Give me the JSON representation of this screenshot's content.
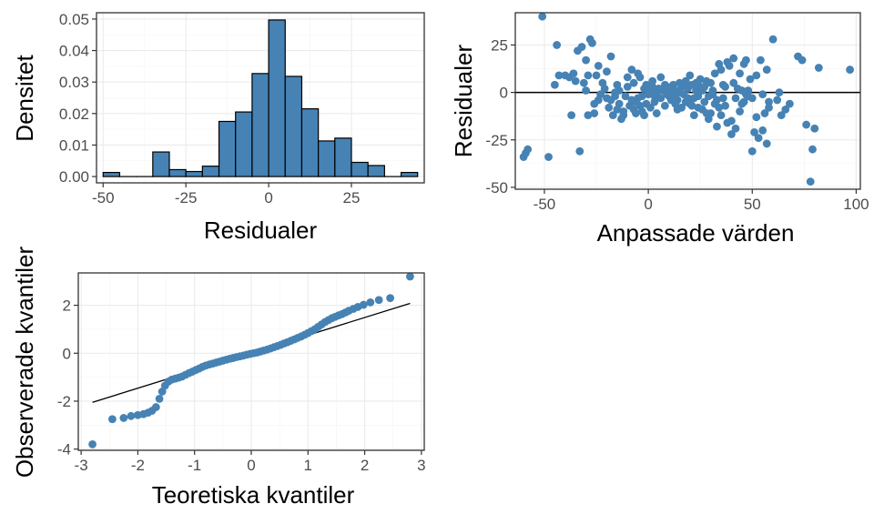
{
  "chart_data": [
    {
      "type": "bar",
      "chart": "histogram",
      "xlabel": "Residualer",
      "ylabel": "Densitet",
      "xlim": [
        -52,
        47
      ],
      "ylim": [
        -0.002,
        0.052
      ],
      "xticks": [
        -50,
        -25,
        0,
        25
      ],
      "xtick_labels": [
        "-50",
        "-25",
        "0",
        "25"
      ],
      "yticks": [
        0,
        0.01,
        0.02,
        0.03,
        0.04,
        0.05
      ],
      "ytick_labels": [
        "0.00",
        "0.01",
        "0.02",
        "0.03",
        "0.04",
        "0.05"
      ],
      "bin_width": 5,
      "bin_centers": [
        -47.5,
        -42.5,
        -37.5,
        -32.5,
        -27.5,
        -22.5,
        -17.5,
        -12.5,
        -7.5,
        -2.5,
        2.5,
        7.5,
        12.5,
        17.5,
        22.5,
        27.5,
        32.5,
        37.5,
        42.5
      ],
      "values": [
        0.0013,
        0,
        0,
        0.0078,
        0.0022,
        0.0016,
        0.0033,
        0.0175,
        0.0205,
        0.0327,
        0.0497,
        0.0318,
        0.0215,
        0.0113,
        0.0122,
        0.0045,
        0.0035,
        0,
        0.0013
      ],
      "color": "#4682b4",
      "grid": true
    },
    {
      "type": "scatter",
      "xlabel": "Anpassade värden",
      "ylabel": "Residualer",
      "xlim": [
        -64,
        102
      ],
      "ylim": [
        -51,
        42
      ],
      "xticks": [
        -50,
        0,
        50,
        100
      ],
      "xtick_labels": [
        "-50",
        "0",
        "50",
        "100"
      ],
      "yticks": [
        -50,
        -25,
        0,
        25
      ],
      "ytick_labels": [
        "-50",
        "-25",
        "0",
        "25"
      ],
      "hline": 0,
      "color": "#4682b4",
      "grid": true,
      "points": [
        [
          -51,
          40
        ],
        [
          -60,
          -34
        ],
        [
          -59,
          -32
        ],
        [
          -58,
          -30
        ],
        [
          -48,
          -34
        ],
        [
          -44,
          25
        ],
        [
          -45,
          4
        ],
        [
          -43,
          9
        ],
        [
          -40,
          9
        ],
        [
          -38,
          8
        ],
        [
          -36,
          10
        ],
        [
          -34,
          22
        ],
        [
          -32,
          24
        ],
        [
          -30,
          17
        ],
        [
          -29,
          -12
        ],
        [
          -28,
          28
        ],
        [
          -27,
          26
        ],
        [
          -26,
          -11
        ],
        [
          -25,
          9
        ],
        [
          -24,
          14
        ],
        [
          -33,
          -31
        ],
        [
          -35,
          6
        ],
        [
          -31,
          5
        ],
        [
          -22,
          5
        ],
        [
          -21,
          2
        ],
        [
          -20,
          -3
        ],
        [
          -19,
          -8
        ],
        [
          -18,
          19
        ],
        [
          -17,
          -12
        ],
        [
          -16,
          0
        ],
        [
          -15,
          4
        ],
        [
          -14,
          -6
        ],
        [
          -13,
          -14
        ],
        [
          -12,
          -10
        ],
        [
          -11,
          -2
        ],
        [
          -10,
          3
        ],
        [
          -9,
          -7
        ],
        [
          -8,
          -4
        ],
        [
          -7,
          5
        ],
        [
          -6,
          -5
        ],
        [
          -5,
          -3
        ],
        [
          -4,
          8
        ],
        [
          -3,
          -2
        ],
        [
          -2,
          2
        ],
        [
          -1,
          -6
        ],
        [
          0,
          -1
        ],
        [
          1,
          1
        ],
        [
          2,
          3
        ],
        [
          3,
          -2
        ],
        [
          4,
          0
        ],
        [
          5,
          2
        ],
        [
          6,
          -3
        ],
        [
          7,
          1
        ],
        [
          8,
          4
        ],
        [
          9,
          -1
        ],
        [
          10,
          0
        ],
        [
          11,
          2
        ],
        [
          12,
          -2
        ],
        [
          13,
          1
        ],
        [
          14,
          -4
        ],
        [
          15,
          0
        ],
        [
          16,
          3
        ],
        [
          17,
          -1
        ],
        [
          18,
          -5
        ],
        [
          19,
          2
        ],
        [
          20,
          -6
        ],
        [
          21,
          4
        ],
        [
          22,
          -3
        ],
        [
          23,
          1
        ],
        [
          24,
          -8
        ],
        [
          25,
          3
        ],
        [
          26,
          -9
        ],
        [
          27,
          -5
        ],
        [
          28,
          6
        ],
        [
          29,
          -2
        ],
        [
          30,
          -11
        ],
        [
          31,
          1
        ],
        [
          32,
          10
        ],
        [
          33,
          -4
        ],
        [
          34,
          15
        ],
        [
          35,
          -12
        ],
        [
          36,
          4
        ],
        [
          37,
          -7
        ],
        [
          38,
          16
        ],
        [
          39,
          14
        ],
        [
          40,
          -15
        ],
        [
          41,
          18
        ],
        [
          42,
          -19
        ],
        [
          43,
          2
        ],
        [
          44,
          10
        ],
        [
          45,
          -6
        ],
        [
          46,
          -5
        ],
        [
          47,
          17
        ],
        [
          48,
          1
        ],
        [
          49,
          7
        ],
        [
          50,
          -31
        ],
        [
          51,
          -21
        ],
        [
          52,
          -13
        ],
        [
          53,
          -24
        ],
        [
          54,
          17
        ],
        [
          55,
          -1
        ],
        [
          56,
          -11
        ],
        [
          57,
          -27
        ],
        [
          58,
          -5
        ],
        [
          60,
          28
        ],
        [
          62,
          -4
        ],
        [
          64,
          -12
        ],
        [
          66,
          -9
        ],
        [
          68,
          -6
        ],
        [
          72,
          19
        ],
        [
          74,
          17
        ],
        [
          76,
          -17
        ],
        [
          78,
          -47
        ],
        [
          79,
          -30
        ],
        [
          80,
          -19
        ],
        [
          82,
          13
        ],
        [
          97,
          12
        ],
        [
          -23,
          -1
        ],
        [
          -26,
          -6
        ],
        [
          -15,
          -9
        ],
        [
          -12,
          -12
        ],
        [
          -5,
          10
        ],
        [
          10,
          -2
        ],
        [
          18,
          6
        ],
        [
          22,
          -12
        ],
        [
          25,
          7
        ],
        [
          28,
          -11
        ],
        [
          30,
          5
        ],
        [
          33,
          -18
        ],
        [
          35,
          12
        ],
        [
          38,
          -16
        ],
        [
          41,
          5
        ],
        [
          44,
          -10
        ],
        [
          46,
          15
        ],
        [
          48,
          -2
        ],
        [
          -8,
          12
        ],
        [
          -2,
          -12
        ],
        [
          6,
          8
        ],
        [
          14,
          -9
        ],
        [
          20,
          9
        ],
        [
          26,
          1
        ],
        [
          31,
          -1
        ],
        [
          36,
          -3
        ],
        [
          -3,
          -10
        ],
        [
          2,
          6
        ],
        [
          12,
          4
        ],
        [
          16,
          -8
        ],
        [
          24,
          -2
        ],
        [
          34,
          -8
        ],
        [
          -18,
          -4
        ],
        [
          -10,
          8
        ],
        [
          -6,
          -11
        ],
        [
          -1,
          4
        ],
        [
          3,
          -5
        ],
        [
          8,
          -7
        ],
        [
          19,
          -3
        ],
        [
          27,
          3
        ],
        [
          32,
          -6
        ],
        [
          40,
          -22
        ],
        [
          45,
          1
        ],
        [
          50,
          -3
        ],
        [
          55,
          -20
        ],
        [
          58,
          -8
        ],
        [
          63,
          0
        ],
        [
          -37,
          -12
        ],
        [
          -29,
          9
        ],
        [
          -20,
          11
        ],
        [
          -24,
          -4
        ],
        [
          -14,
          1
        ],
        [
          -7,
          -9
        ],
        [
          4,
          -11
        ],
        [
          11,
          -4
        ],
        [
          15,
          5
        ],
        [
          21,
          -7
        ],
        [
          23,
          5
        ],
        [
          29,
          -14
        ],
        [
          37,
          3
        ],
        [
          42,
          -3
        ],
        [
          47,
          -1
        ],
        [
          52,
          9
        ],
        [
          57,
          12
        ],
        [
          -30,
          1
        ],
        [
          -16,
          -2
        ],
        [
          -4,
          -7
        ],
        [
          1,
          -8
        ],
        [
          9,
          3
        ],
        [
          17,
          4
        ],
        [
          13,
          -6
        ]
      ]
    },
    {
      "type": "scatter",
      "chart": "qq",
      "xlabel": "Teoretiska kvantiler",
      "ylabel": "Observerade kvantiler",
      "xlim": [
        -3.05,
        3.05
      ],
      "ylim": [
        -4.05,
        3.35
      ],
      "xticks": [
        -3,
        -2,
        -1,
        0,
        1,
        2,
        3
      ],
      "xtick_labels": [
        "-3",
        "-2",
        "-1",
        "0",
        "1",
        "2",
        "3"
      ],
      "yticks": [
        -4,
        -2,
        0,
        2
      ],
      "ytick_labels": [
        "-4",
        "-2",
        "0",
        "2"
      ],
      "reference_line": [
        [
          -2.8,
          -2.05
        ],
        [
          2.8,
          2.08
        ]
      ],
      "color": "#4682b4",
      "grid": true,
      "points": [
        [
          -2.8,
          -3.8
        ],
        [
          -2.45,
          -2.75
        ],
        [
          -2.25,
          -2.7
        ],
        [
          -2.12,
          -2.62
        ],
        [
          -2.0,
          -2.58
        ],
        [
          -1.9,
          -2.54
        ],
        [
          -1.82,
          -2.48
        ],
        [
          -1.75,
          -2.4
        ],
        [
          -1.68,
          -2.25
        ],
        [
          -1.62,
          -1.9
        ],
        [
          -1.57,
          -1.6
        ],
        [
          -1.52,
          -1.35
        ],
        [
          -1.46,
          -1.18
        ],
        [
          -1.4,
          -1.1
        ],
        [
          -1.34,
          -1.06
        ],
        [
          -1.28,
          -1.02
        ],
        [
          -1.22,
          -0.97
        ],
        [
          -1.16,
          -0.9
        ],
        [
          -1.1,
          -0.83
        ],
        [
          -1.04,
          -0.77
        ],
        [
          -0.98,
          -0.7
        ],
        [
          -0.92,
          -0.64
        ],
        [
          -0.86,
          -0.57
        ],
        [
          -0.8,
          -0.51
        ],
        [
          -0.74,
          -0.47
        ],
        [
          -0.68,
          -0.43
        ],
        [
          -0.62,
          -0.39
        ],
        [
          -0.56,
          -0.35
        ],
        [
          -0.5,
          -0.31
        ],
        [
          -0.44,
          -0.27
        ],
        [
          -0.38,
          -0.23
        ],
        [
          -0.32,
          -0.2
        ],
        [
          -0.26,
          -0.16
        ],
        [
          -0.2,
          -0.13
        ],
        [
          -0.14,
          -0.1
        ],
        [
          -0.08,
          -0.06
        ],
        [
          -0.02,
          -0.03
        ],
        [
          0.04,
          0.0
        ],
        [
          0.1,
          0.03
        ],
        [
          0.16,
          0.07
        ],
        [
          0.22,
          0.11
        ],
        [
          0.28,
          0.15
        ],
        [
          0.34,
          0.2
        ],
        [
          0.4,
          0.25
        ],
        [
          0.46,
          0.3
        ],
        [
          0.52,
          0.35
        ],
        [
          0.58,
          0.41
        ],
        [
          0.64,
          0.46
        ],
        [
          0.7,
          0.52
        ],
        [
          0.76,
          0.58
        ],
        [
          0.82,
          0.64
        ],
        [
          0.88,
          0.7
        ],
        [
          0.94,
          0.77
        ],
        [
          1.0,
          0.84
        ],
        [
          1.06,
          0.92
        ],
        [
          1.12,
          1.0
        ],
        [
          1.18,
          1.1
        ],
        [
          1.24,
          1.2
        ],
        [
          1.3,
          1.3
        ],
        [
          1.36,
          1.38
        ],
        [
          1.42,
          1.46
        ],
        [
          1.48,
          1.52
        ],
        [
          1.54,
          1.58
        ],
        [
          1.6,
          1.63
        ],
        [
          1.66,
          1.7
        ],
        [
          1.72,
          1.77
        ],
        [
          1.8,
          1.85
        ],
        [
          1.88,
          1.93
        ],
        [
          1.98,
          2.02
        ],
        [
          2.1,
          2.12
        ],
        [
          2.25,
          2.22
        ],
        [
          2.45,
          2.3
        ],
        [
          2.8,
          3.2
        ]
      ]
    }
  ]
}
